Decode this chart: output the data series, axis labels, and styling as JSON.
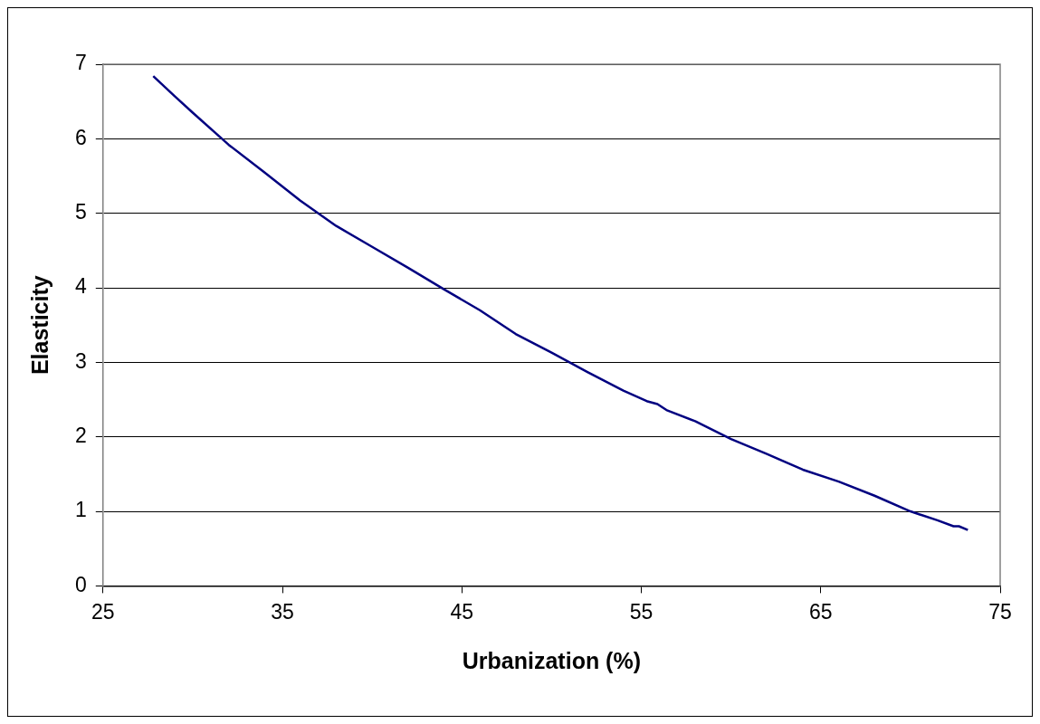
{
  "chart_data": {
    "type": "line",
    "xlabel": "Urbanization (%)",
    "ylabel": "Elasticity",
    "x": [
      27.8,
      29,
      30,
      32,
      34,
      36,
      38,
      40,
      42,
      44,
      46,
      48,
      50,
      52,
      54,
      55.3,
      55.9,
      56.4,
      58,
      60,
      62,
      64,
      66,
      68,
      70,
      71.5,
      72.4,
      72.7,
      73.2
    ],
    "series": [
      {
        "color": "#000080",
        "values": [
          6.84,
          6.57,
          6.35,
          5.92,
          5.55,
          5.17,
          4.83,
          4.55,
          4.27,
          3.98,
          3.7,
          3.38,
          3.13,
          2.87,
          2.62,
          2.48,
          2.44,
          2.36,
          2.21,
          1.97,
          1.77,
          1.56,
          1.4,
          1.21,
          1.0,
          0.88,
          0.8,
          0.8,
          0.75
        ]
      }
    ],
    "xlim": [
      25,
      75
    ],
    "xticks": [
      25,
      35,
      45,
      55,
      65,
      75
    ],
    "ylim": [
      0,
      7
    ],
    "yticks": [
      0,
      1,
      2,
      3,
      4,
      5,
      6,
      7
    ],
    "grid": "y",
    "legend": false
  }
}
